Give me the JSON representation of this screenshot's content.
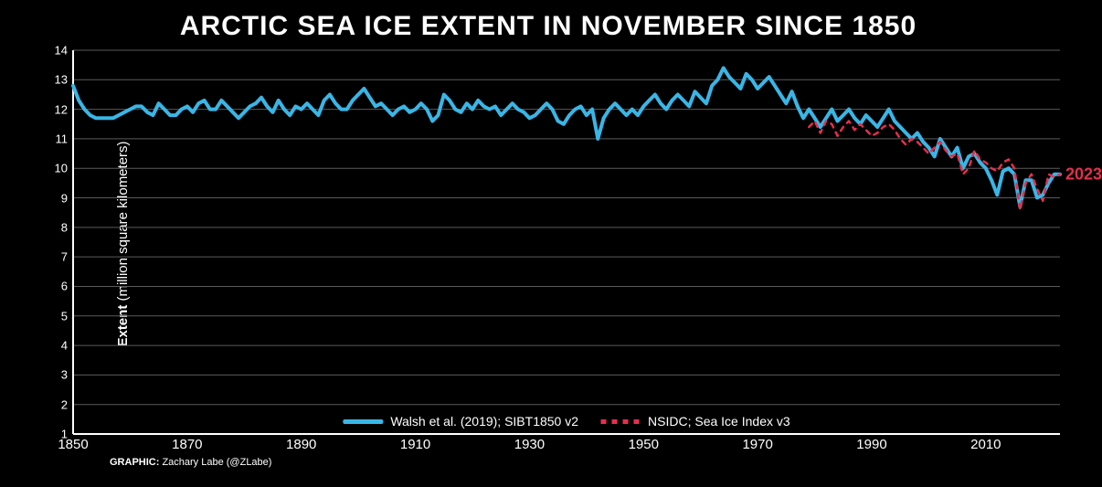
{
  "chart": {
    "type": "line",
    "title": "ARCTIC SEA ICE EXTENT IN NOVEMBER SINCE 1850",
    "title_fontsize": 30,
    "title_color": "#ffffff",
    "background_color": "#000000",
    "ylabel_bold": "Extent",
    "ylabel_light": " (million square kilometers)",
    "ylabel_fontsize": 15,
    "axis_color": "#ffffff",
    "grid_color": "#5a5a5a",
    "grid_width": 1,
    "tick_label_fontsize_y": 13,
    "tick_label_fontsize_x": 15,
    "xlim": [
      1850,
      2023
    ],
    "ylim": [
      1,
      14
    ],
    "yticks": [
      1,
      2,
      3,
      4,
      5,
      6,
      7,
      8,
      9,
      10,
      11,
      12,
      13,
      14
    ],
    "xticks": [
      1850,
      1870,
      1890,
      1910,
      1930,
      1950,
      1970,
      1990,
      2010
    ],
    "annotation": {
      "year": 2023,
      "value": 9.8,
      "label": "2023",
      "color": "#e62e4d",
      "fontsize": 18
    },
    "credit_bold": "GRAPHIC:",
    "credit_text": " Zachary Labe (@ZLabe)",
    "credit_fontsize": 11,
    "legend": {
      "position": "bottom-center",
      "items": [
        {
          "label": "Walsh et al. (2019); SIBT1850 v2",
          "color": "#39b6e6",
          "style": "solid",
          "width": 5
        },
        {
          "label": "NSIDC; Sea Ice Index v3",
          "color": "#e62e4d",
          "style": "dashed",
          "width": 3
        }
      ]
    },
    "series": [
      {
        "name": "walsh_sibt1850_v2",
        "color": "#39b6e6",
        "line_width": 4,
        "line_style": "solid",
        "x_start": 1850,
        "x_step": 1,
        "y": [
          12.8,
          12.3,
          12.0,
          11.8,
          11.7,
          11.7,
          11.7,
          11.7,
          11.8,
          11.9,
          12.0,
          12.1,
          12.1,
          11.9,
          11.8,
          12.2,
          12.0,
          11.8,
          11.8,
          12.0,
          12.1,
          11.9,
          12.2,
          12.3,
          12.0,
          12.0,
          12.3,
          12.1,
          11.9,
          11.7,
          11.9,
          12.1,
          12.2,
          12.4,
          12.1,
          11.9,
          12.3,
          12.0,
          11.8,
          12.1,
          12.0,
          12.2,
          12.0,
          11.8,
          12.3,
          12.5,
          12.2,
          12.0,
          12.0,
          12.3,
          12.5,
          12.7,
          12.4,
          12.1,
          12.2,
          12.0,
          11.8,
          12.0,
          12.1,
          11.9,
          12.0,
          12.2,
          12.0,
          11.6,
          11.8,
          12.5,
          12.3,
          12.0,
          11.9,
          12.2,
          12.0,
          12.3,
          12.1,
          12.0,
          12.1,
          11.8,
          12.0,
          12.2,
          12.0,
          11.9,
          11.7,
          11.8,
          12.0,
          12.2,
          12.0,
          11.6,
          11.5,
          11.8,
          12.0,
          12.1,
          11.8,
          12.0,
          11.0,
          11.7,
          12.0,
          12.2,
          12.0,
          11.8,
          12.0,
          11.8,
          12.1,
          12.3,
          12.5,
          12.2,
          12.0,
          12.3,
          12.5,
          12.3,
          12.1,
          12.6,
          12.4,
          12.2,
          12.8,
          13.0,
          13.4,
          13.1,
          12.9,
          12.7,
          13.2,
          13.0,
          12.7,
          12.9,
          13.1,
          12.8,
          12.5,
          12.2,
          12.6,
          12.1,
          11.7,
          12.0,
          11.7,
          11.4,
          11.7,
          12.0,
          11.6,
          11.8,
          12.0,
          11.7,
          11.5,
          11.8,
          11.6,
          11.4,
          11.7,
          12.0,
          11.6,
          11.4,
          11.2,
          11.0,
          11.2,
          10.9,
          10.7,
          10.4,
          11.0,
          10.7,
          10.4,
          10.7,
          10.0,
          10.4,
          10.5,
          10.2,
          10.0,
          9.6,
          9.1,
          9.9,
          10.0,
          9.8,
          8.7,
          9.6,
          9.6,
          9.0,
          9.1,
          9.5,
          9.8,
          9.8
        ]
      },
      {
        "name": "nsidc_sea_ice_index_v3",
        "color": "#e62e4d",
        "line_width": 2.5,
        "line_style": "dashed",
        "x_start": 1979,
        "x_step": 1,
        "y": [
          11.4,
          11.6,
          11.2,
          11.6,
          11.5,
          11.1,
          11.4,
          11.6,
          11.3,
          11.5,
          11.3,
          11.1,
          11.2,
          11.4,
          11.5,
          11.3,
          11.0,
          10.8,
          11.0,
          10.9,
          10.7,
          10.5,
          10.7,
          10.9,
          10.6,
          10.4,
          10.5,
          9.8,
          10.0,
          10.6,
          10.3,
          10.2,
          10.0,
          9.9,
          10.2,
          10.3,
          10.0,
          8.6,
          9.5,
          9.8,
          9.3,
          8.9,
          9.8,
          9.7,
          9.8
        ]
      }
    ]
  }
}
